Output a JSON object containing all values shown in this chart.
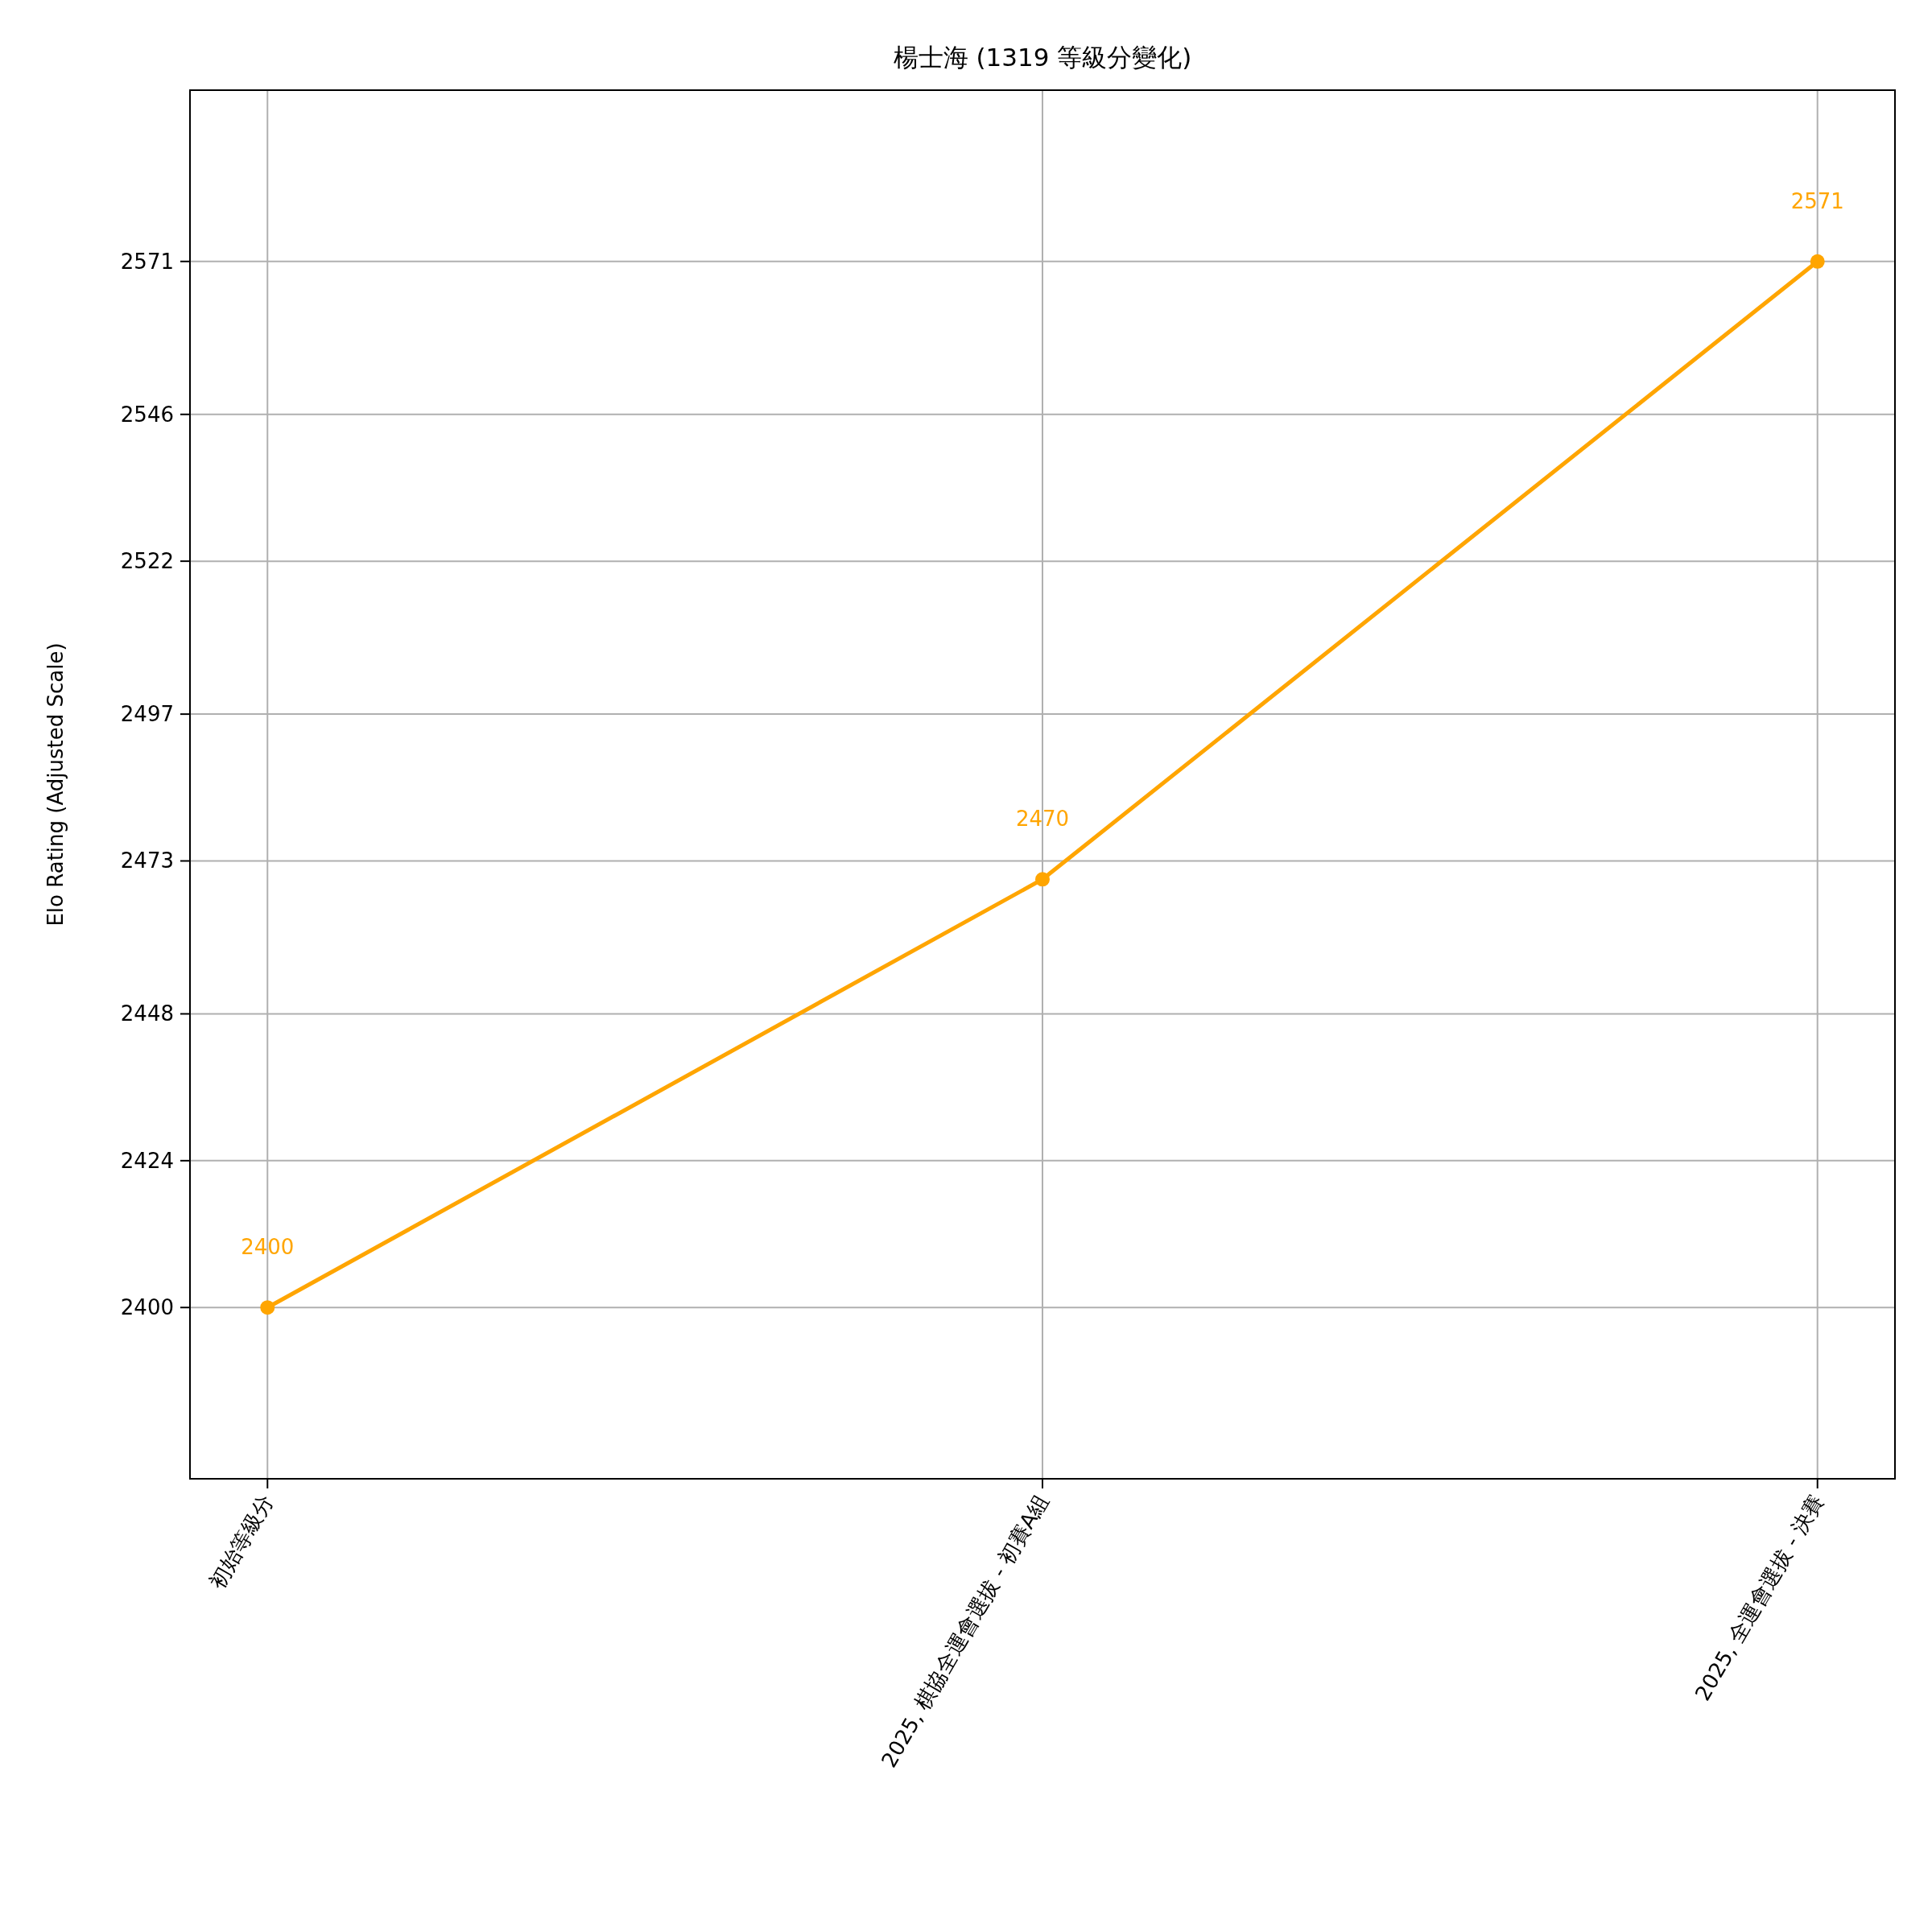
{
  "chart_data": {
    "type": "line",
    "title": "楊士海 (1319 等級分變化)",
    "ylabel": "Elo Rating (Adjusted Scale)",
    "categories": [
      "初始等級分",
      "2025, 棋協全運會選拔 - 初賽A組",
      "2025, 全運會選拔 - 決賽"
    ],
    "series": [
      {
        "color": "#ffa500",
        "values": [
          2400,
          2470,
          2571
        ]
      }
    ],
    "ylim": [
      2372,
      2599
    ],
    "yticks": [
      2400,
      2424,
      2448,
      2473,
      2497,
      2522,
      2546,
      2571
    ],
    "grid": true,
    "marker": "circle",
    "data_labels": true
  }
}
